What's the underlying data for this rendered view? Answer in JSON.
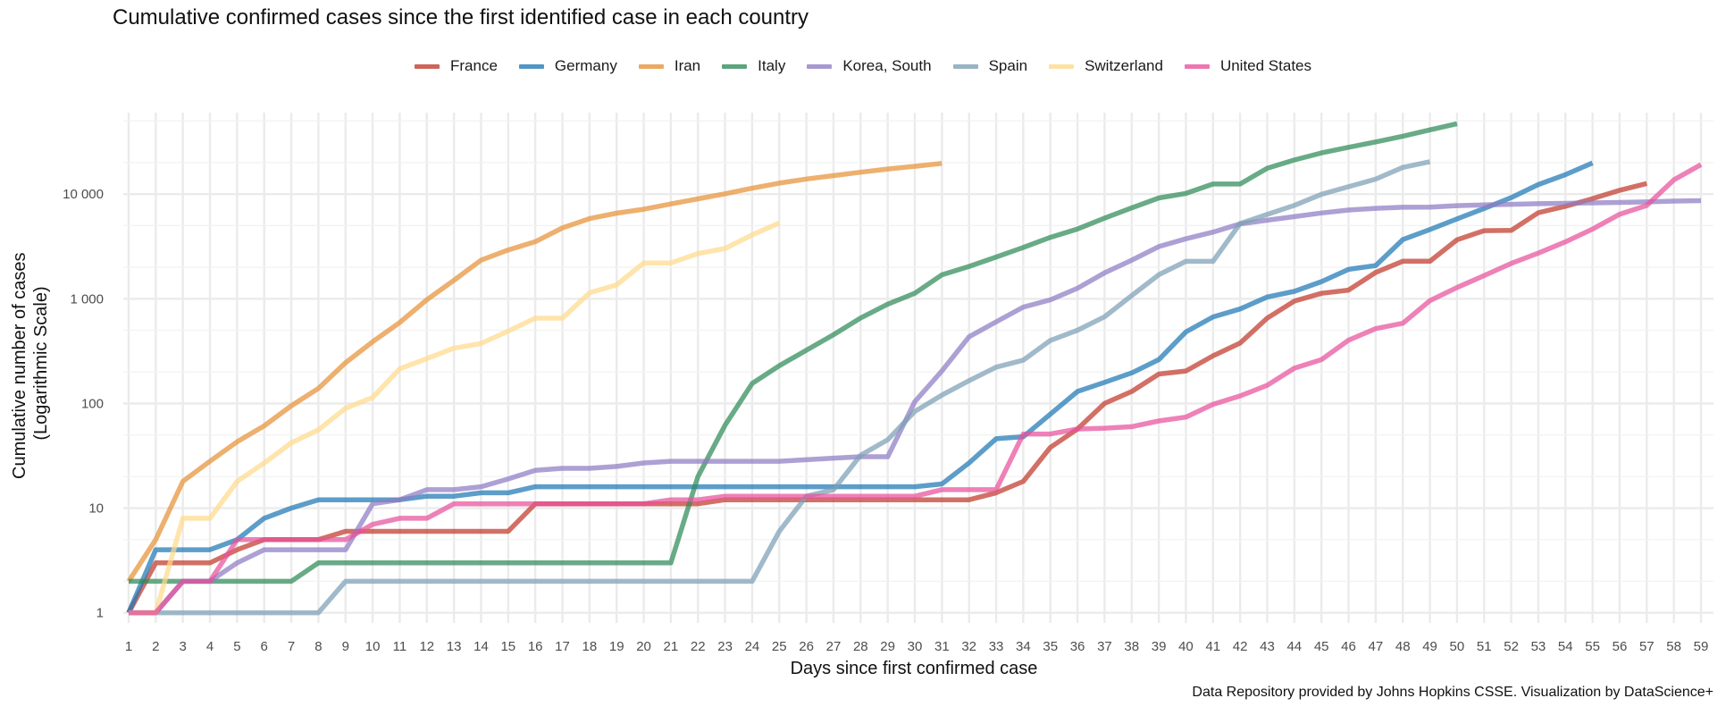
{
  "chart_data": {
    "type": "line",
    "title": "Cumulative confirmed cases since the first identified case in each country",
    "xlabel": "Days since first confirmed case",
    "ylabel": [
      "Cumulative number of cases",
      "(Logarithmic Scale)"
    ],
    "caption": "Data Repository provided by Johns Hopkins CSSE. Visualization by DataScience+",
    "y_scale": "log10",
    "grid": true,
    "legend_position": "top",
    "xlim": [
      1,
      59
    ],
    "ylim": [
      0.8,
      60000
    ],
    "x_ticks": [
      1,
      2,
      3,
      4,
      5,
      6,
      7,
      8,
      9,
      10,
      11,
      12,
      13,
      14,
      15,
      16,
      17,
      18,
      19,
      20,
      21,
      22,
      23,
      24,
      25,
      26,
      27,
      28,
      29,
      30,
      31,
      32,
      33,
      34,
      35,
      36,
      37,
      38,
      39,
      40,
      41,
      42,
      43,
      44,
      45,
      46,
      47,
      48,
      49,
      50,
      51,
      52,
      53,
      54,
      55,
      56,
      57,
      58,
      59
    ],
    "y_ticks": [
      {
        "value": 1,
        "label": "1"
      },
      {
        "value": 10,
        "label": "10"
      },
      {
        "value": 100,
        "label": "100"
      },
      {
        "value": 1000,
        "label": "1 000"
      },
      {
        "value": 10000,
        "label": "10 000"
      }
    ],
    "series": [
      {
        "name": "France",
        "color": "#c0392b",
        "values": [
          1,
          3,
          3,
          3,
          4,
          5,
          5,
          5,
          6,
          6,
          6,
          6,
          6,
          6,
          6,
          11,
          11,
          11,
          11,
          11,
          11,
          11,
          12,
          12,
          12,
          12,
          12,
          12,
          12,
          12,
          12,
          12,
          14,
          18,
          38,
          57,
          100,
          130,
          191,
          204,
          285,
          377,
          653,
          949,
          1126,
          1209,
          1784,
          2281,
          2281,
          3661,
          4469,
          4499,
          6633,
          7652,
          9043,
          10871,
          12612
        ]
      },
      {
        "name": "Germany",
        "color": "#1f77b4",
        "values": [
          1,
          4,
          4,
          4,
          5,
          8,
          10,
          12,
          12,
          12,
          12,
          13,
          13,
          14,
          14,
          16,
          16,
          16,
          16,
          16,
          16,
          16,
          16,
          16,
          16,
          16,
          16,
          16,
          16,
          16,
          17,
          27,
          46,
          48,
          79,
          130,
          159,
          196,
          262,
          482,
          670,
          799,
          1040,
          1176,
          1457,
          1908,
          2078,
          3675,
          4585,
          5795,
          7272,
          9257,
          12327,
          15320,
          19848
        ]
      },
      {
        "name": "Iran",
        "color": "#e69138",
        "values": [
          2,
          5,
          18,
          28,
          43,
          61,
          95,
          139,
          245,
          388,
          593,
          978,
          1501,
          2336,
          2922,
          3513,
          4747,
          5823,
          6566,
          7161,
          8042,
          9000,
          10075,
          11364,
          12729,
          13938,
          14991,
          16169,
          17361,
          18407,
          19644
        ]
      },
      {
        "name": "Italy",
        "color": "#2e8b57",
        "values": [
          2,
          2,
          2,
          2,
          2,
          2,
          2,
          3,
          3,
          3,
          3,
          3,
          3,
          3,
          3,
          3,
          3,
          3,
          3,
          3,
          3,
          20,
          62,
          155,
          229,
          322,
          453,
          655,
          888,
          1128,
          1694,
          2036,
          2502,
          3089,
          3858,
          4636,
          5883,
          7375,
          9172,
          10149,
          12462,
          12462,
          17660,
          21157,
          24747,
          27980,
          31506,
          35713,
          41035,
          47021
        ]
      },
      {
        "name": "Korea, South",
        "color": "#8e7cc3",
        "values": [
          1,
          1,
          2,
          2,
          3,
          4,
          4,
          4,
          4,
          11,
          12,
          15,
          15,
          16,
          19,
          23,
          24,
          24,
          25,
          27,
          28,
          28,
          28,
          28,
          28,
          29,
          30,
          31,
          31,
          104,
          204,
          433,
          602,
          833,
          977,
          1261,
          1766,
          2337,
          3150,
          3736,
          4335,
          5186,
          5621,
          6088,
          6593,
          7041,
          7314,
          7478,
          7513,
          7755,
          7869,
          7979,
          8086,
          8162,
          8236,
          8320,
          8413,
          8565,
          8652
        ]
      },
      {
        "name": "Spain",
        "color": "#7b9fb5",
        "values": [
          1,
          1,
          1,
          1,
          1,
          1,
          1,
          1,
          2,
          2,
          2,
          2,
          2,
          2,
          2,
          2,
          2,
          2,
          2,
          2,
          2,
          2,
          2,
          2,
          6,
          13,
          15,
          32,
          45,
          84,
          120,
          165,
          222,
          259,
          400,
          500,
          673,
          1073,
          1695,
          2277,
          2277,
          5232,
          6391,
          7798,
          9942,
          11748,
          13910,
          17963,
          20410
        ]
      },
      {
        "name": "Switzerland",
        "color": "#ffd98a",
        "values": [
          1,
          1,
          8,
          8,
          18,
          27,
          42,
          56,
          90,
          114,
          214,
          268,
          337,
          374,
          491,
          652,
          652,
          1139,
          1359,
          2200,
          2200,
          2700,
          3028,
          4075,
          5294
        ]
      },
      {
        "name": "United States",
        "color": "#e8509b",
        "values": [
          1,
          1,
          2,
          2,
          5,
          5,
          5,
          5,
          5,
          7,
          8,
          8,
          11,
          11,
          11,
          11,
          11,
          11,
          11,
          11,
          12,
          12,
          13,
          13,
          13,
          13,
          13,
          13,
          13,
          13,
          15,
          15,
          15,
          51,
          51,
          57,
          58,
          60,
          68,
          74,
          98,
          118,
          149,
          217,
          262,
          402,
          518,
          583,
          959,
          1281,
          1663,
          2179,
          2727,
          3499,
          4632,
          6421,
          7786,
          13680,
          19101
        ]
      }
    ]
  }
}
